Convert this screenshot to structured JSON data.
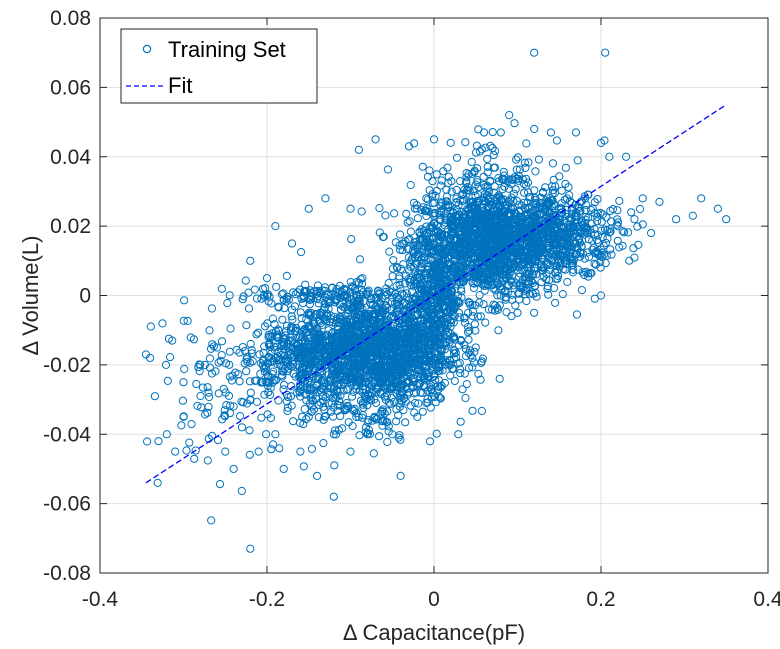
{
  "chart_data": {
    "type": "scatter",
    "xlabel": "Δ Capacitance(pF)",
    "ylabel": "Δ Volume(L)",
    "xlim": [
      -0.4,
      0.4
    ],
    "ylim": [
      -0.08,
      0.08
    ],
    "xticks": [
      -0.4,
      -0.2,
      0,
      0.2,
      0.4
    ],
    "yticks": [
      -0.08,
      -0.06,
      -0.04,
      -0.02,
      0,
      0.02,
      0.04,
      0.06,
      0.08
    ],
    "xtick_labels": [
      "-0.4",
      "-0.2",
      "0",
      "0.2",
      "0.4"
    ],
    "ytick_labels": [
      "-0.08",
      "-0.06",
      "-0.04",
      "-0.02",
      "0",
      "0.02",
      "0.04",
      "0.06",
      "0.08"
    ],
    "grid": true,
    "legend_position": "top-left",
    "colors": {
      "training": "#0072BD",
      "fit": "#0000FF",
      "grid": "#DFDFDF",
      "axis": "#262626"
    },
    "series": [
      {
        "name": "Training Set",
        "marker": "circle",
        "points": [
          [
            0.12,
            0.07
          ],
          [
            0.205,
            0.07
          ],
          [
            -0.22,
            -0.073
          ],
          [
            -0.12,
            -0.058
          ],
          [
            -0.04,
            -0.052
          ],
          [
            -0.34,
            -0.018
          ],
          [
            -0.345,
            -0.017
          ],
          [
            -0.33,
            -0.042
          ],
          [
            -0.32,
            -0.04
          ],
          [
            -0.31,
            -0.045
          ],
          [
            -0.3,
            -0.035
          ],
          [
            -0.28,
            -0.02
          ],
          [
            -0.26,
            -0.015
          ],
          [
            -0.25,
            -0.045
          ],
          [
            -0.24,
            -0.05
          ],
          [
            -0.23,
            -0.038
          ],
          [
            -0.22,
            -0.03
          ],
          [
            -0.21,
            -0.045
          ],
          [
            -0.2,
            -0.025
          ],
          [
            -0.19,
            -0.04
          ],
          [
            -0.18,
            -0.05
          ],
          [
            -0.16,
            -0.045
          ],
          [
            -0.14,
            -0.052
          ],
          [
            -0.22,
            0.01
          ],
          [
            -0.2,
            0.005
          ],
          [
            -0.19,
            0.02
          ],
          [
            -0.17,
            0.015
          ],
          [
            -0.15,
            0.025
          ],
          [
            -0.13,
            0.028
          ],
          [
            -0.1,
            0.025
          ],
          [
            -0.09,
            0.042
          ],
          [
            -0.07,
            0.045
          ],
          [
            -0.03,
            0.043
          ],
          [
            0.0,
            0.045
          ],
          [
            0.02,
            0.044
          ],
          [
            0.06,
            0.047
          ],
          [
            0.08,
            0.047
          ],
          [
            0.09,
            0.052
          ],
          [
            0.12,
            0.048
          ],
          [
            0.14,
            0.047
          ],
          [
            0.17,
            0.047
          ],
          [
            0.2,
            0.044
          ],
          [
            0.21,
            0.04
          ],
          [
            0.23,
            0.04
          ],
          [
            0.25,
            0.028
          ],
          [
            0.27,
            0.027
          ],
          [
            0.29,
            0.022
          ],
          [
            0.31,
            0.023
          ],
          [
            0.32,
            0.028
          ],
          [
            0.34,
            0.025
          ],
          [
            0.35,
            0.022
          ],
          [
            0.26,
            0.018
          ],
          [
            0.24,
            0.022
          ],
          [
            0.22,
            0.02
          ],
          [
            0.2,
            0.0
          ],
          [
            -0.3,
            -0.025
          ],
          [
            -0.27,
            -0.028
          ],
          [
            -0.24,
            -0.032
          ],
          [
            -0.15,
            -0.035
          ],
          [
            -0.12,
            -0.04
          ],
          [
            -0.1,
            -0.045
          ],
          [
            -0.08,
            -0.04
          ],
          [
            -0.05,
            -0.04
          ],
          [
            -0.02,
            -0.035
          ],
          [
            0.02,
            -0.02
          ],
          [
            0.05,
            -0.015
          ],
          [
            0.08,
            0.0
          ],
          [
            0.1,
            -0.005
          ],
          [
            -0.2,
            0.0
          ],
          [
            -0.15,
            -0.005
          ]
        ]
      },
      {
        "name": "Fit",
        "line_style": "dashed",
        "points": [
          [
            -0.345,
            -0.054
          ],
          [
            0.35,
            0.055
          ]
        ]
      }
    ],
    "legend": {
      "entries": [
        "Training Set",
        "Fit"
      ]
    }
  }
}
